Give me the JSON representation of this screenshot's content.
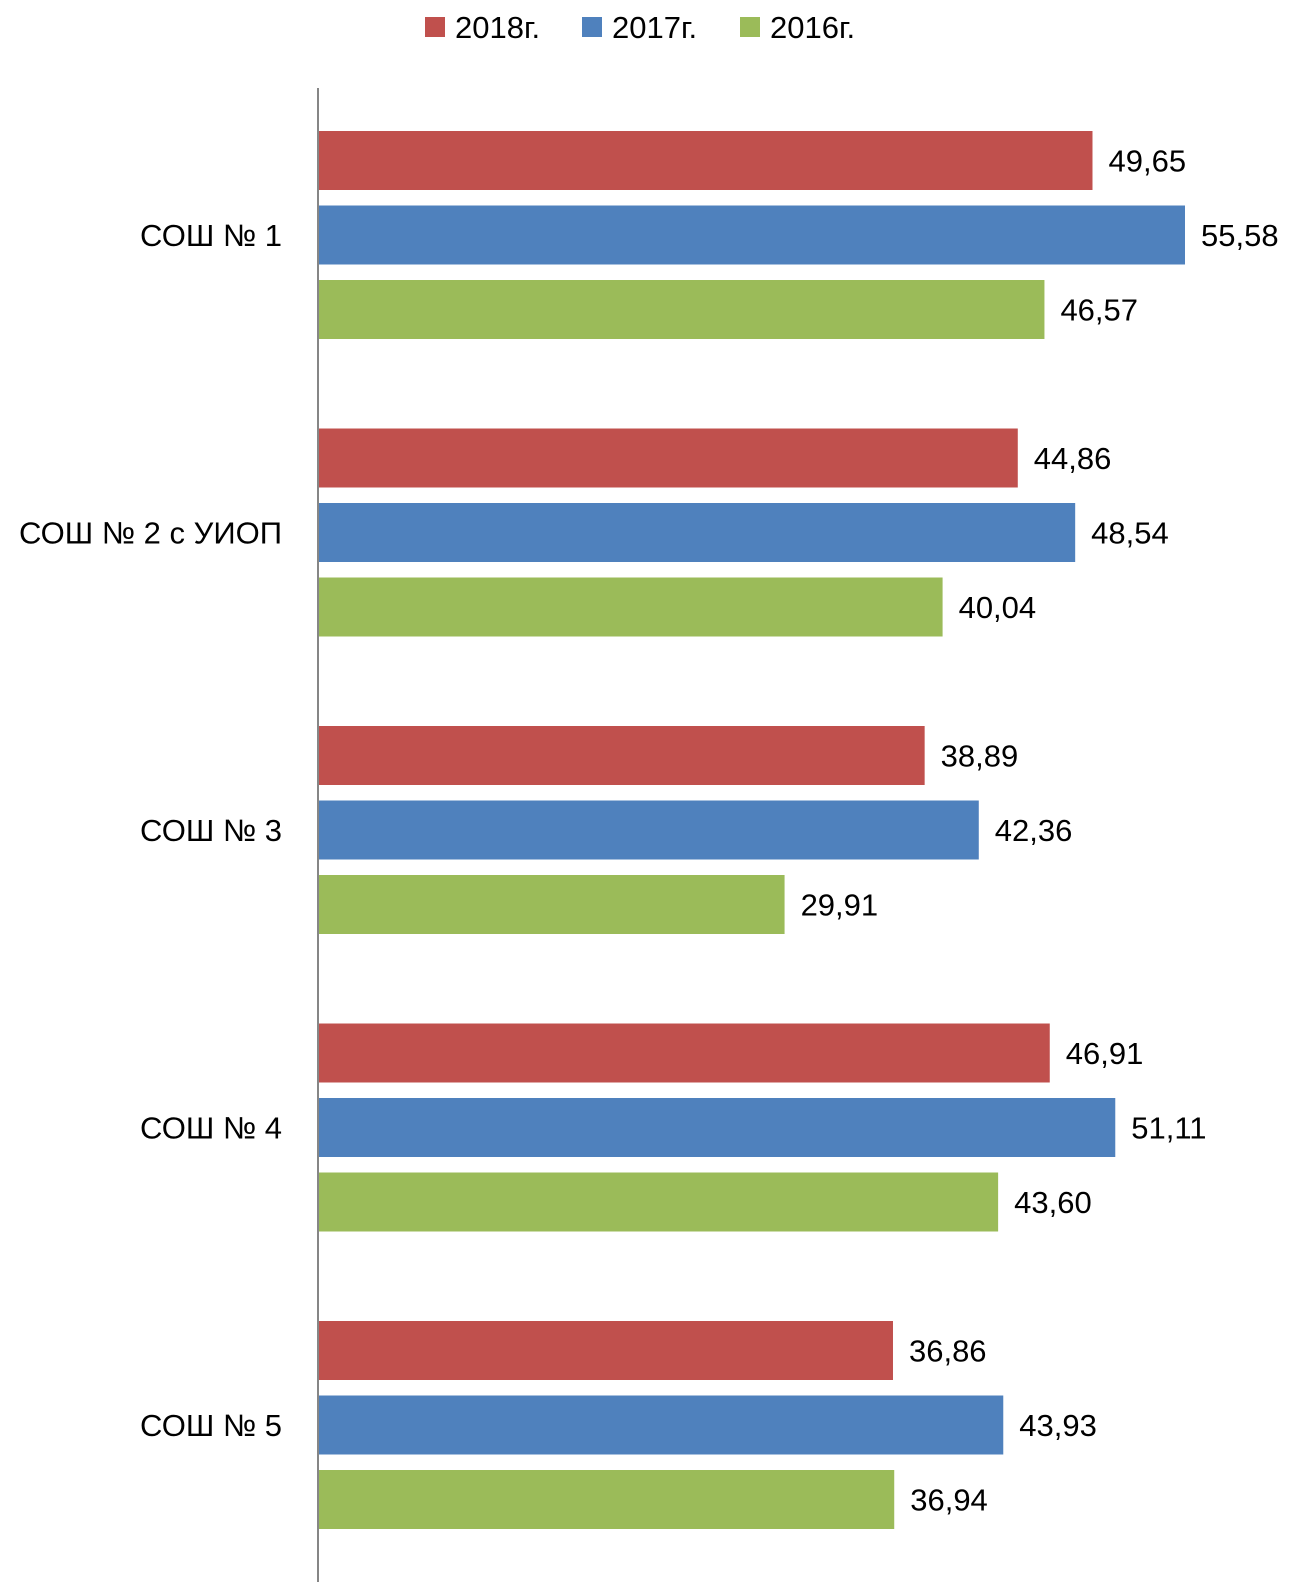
{
  "chart_data": {
    "type": "bar",
    "orientation": "horizontal",
    "title": "",
    "xlabel": "",
    "ylabel": "",
    "legend_position": "top-center",
    "grid": false,
    "xlim": [
      0,
      56
    ],
    "categories": [
      "СОШ № 1",
      "СОШ № 2 с УИОП",
      "СОШ № 3",
      "СОШ № 4",
      "СОШ № 5"
    ],
    "series": [
      {
        "name": "2018г.",
        "color": "#C0504D",
        "values": [
          49.65,
          44.86,
          38.89,
          46.91,
          36.86
        ],
        "labels": [
          "49,65",
          "44,86",
          "38,89",
          "46,91",
          "36,86"
        ]
      },
      {
        "name": "2017г.",
        "color": "#4F81BD",
        "values": [
          55.58,
          48.54,
          42.36,
          51.11,
          43.93
        ],
        "labels": [
          "55,58",
          "48,54",
          "42,36",
          "51,11",
          "43,93"
        ]
      },
      {
        "name": "2016г.",
        "color": "#9BBB59",
        "values": [
          46.57,
          40.04,
          29.91,
          43.6,
          36.94
        ],
        "labels": [
          "46,57",
          "40,04",
          "29,91",
          "43,60",
          "36,94"
        ]
      }
    ]
  }
}
